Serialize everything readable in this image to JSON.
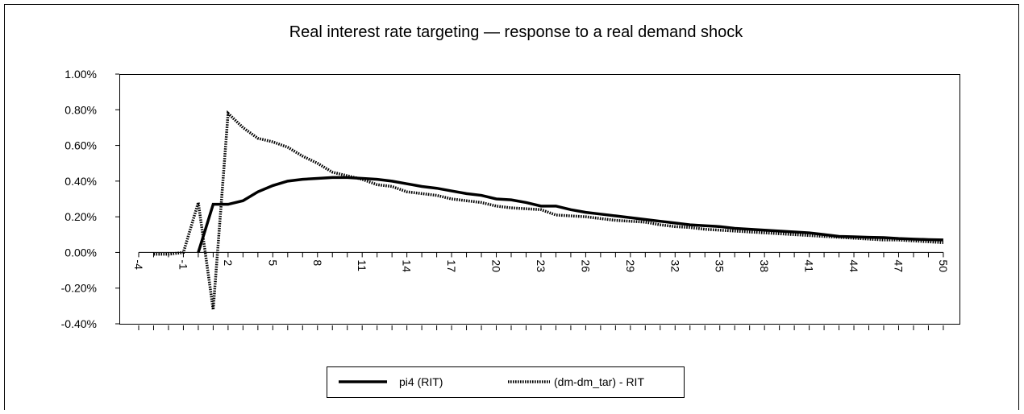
{
  "chart_data": {
    "type": "line",
    "title": "Real interest rate targeting — response to a real demand shock",
    "categories": [
      "-4",
      null,
      null,
      "-1",
      null,
      null,
      "2",
      null,
      null,
      "5",
      null,
      null,
      "8",
      null,
      null,
      "11",
      null,
      null,
      "14",
      null,
      null,
      "17",
      null,
      null,
      "20",
      null,
      null,
      "23",
      null,
      null,
      "26",
      null,
      null,
      "29",
      null,
      null,
      "32",
      null,
      null,
      "35",
      null,
      null,
      "38",
      null,
      null,
      "41",
      null,
      null,
      "44",
      null,
      null,
      "47",
      null,
      null,
      "50"
    ],
    "ylim": [
      -0.4,
      1.0
    ],
    "yticks": [
      {
        "value": -0.4,
        "label": "-0.40%"
      },
      {
        "value": -0.2,
        "label": "-0.20%"
      },
      {
        "value": 0,
        "label": "0.00%"
      },
      {
        "value": 0.2,
        "label": "0.20%"
      },
      {
        "value": 0.4,
        "label": "0.40%"
      },
      {
        "value": 0.6,
        "label": "0.60%"
      },
      {
        "value": 0.8,
        "label": "0.80%"
      },
      {
        "value": 1.0,
        "label": "1.00%"
      }
    ],
    "grid": false,
    "legend": "bottom",
    "series": [
      {
        "name": "pi4 (RIT)",
        "color": "#000000",
        "style": "solid",
        "values": [
          null,
          null,
          null,
          null,
          0,
          0.27,
          0.27,
          0.29,
          0.34,
          0.375,
          0.4,
          0.41,
          0.415,
          0.42,
          0.42,
          0.415,
          0.41,
          0.4,
          0.385,
          0.37,
          0.36,
          0.345,
          0.33,
          0.32,
          0.3,
          0.295,
          0.28,
          0.26,
          0.26,
          0.24,
          0.225,
          0.215,
          0.205,
          0.195,
          0.185,
          0.175,
          0.165,
          0.155,
          0.15,
          0.145,
          0.135,
          0.13,
          0.125,
          0.12,
          0.115,
          0.11,
          0.1,
          0.09,
          0.088,
          0.085,
          0.083,
          0.078,
          0.075,
          0.072,
          0.07
        ]
      },
      {
        "name": "(dm-dm_tar) - RIT",
        "color": "#000000",
        "style": "dotted",
        "values": [
          null,
          -0.01,
          -0.01,
          0,
          0.28,
          -0.32,
          0.78,
          0.7,
          0.64,
          0.62,
          0.59,
          0.54,
          0.5,
          0.45,
          0.43,
          0.41,
          0.38,
          0.37,
          0.34,
          0.33,
          0.32,
          0.3,
          0.29,
          0.28,
          0.26,
          0.25,
          0.245,
          0.24,
          0.21,
          0.205,
          0.2,
          0.19,
          0.18,
          0.175,
          0.17,
          0.155,
          0.145,
          0.14,
          0.13,
          0.125,
          0.12,
          0.115,
          0.11,
          0.105,
          0.1,
          0.095,
          0.09,
          0.085,
          0.08,
          0.075,
          0.07,
          0.07,
          0.065,
          0.06,
          0.055
        ]
      }
    ]
  }
}
